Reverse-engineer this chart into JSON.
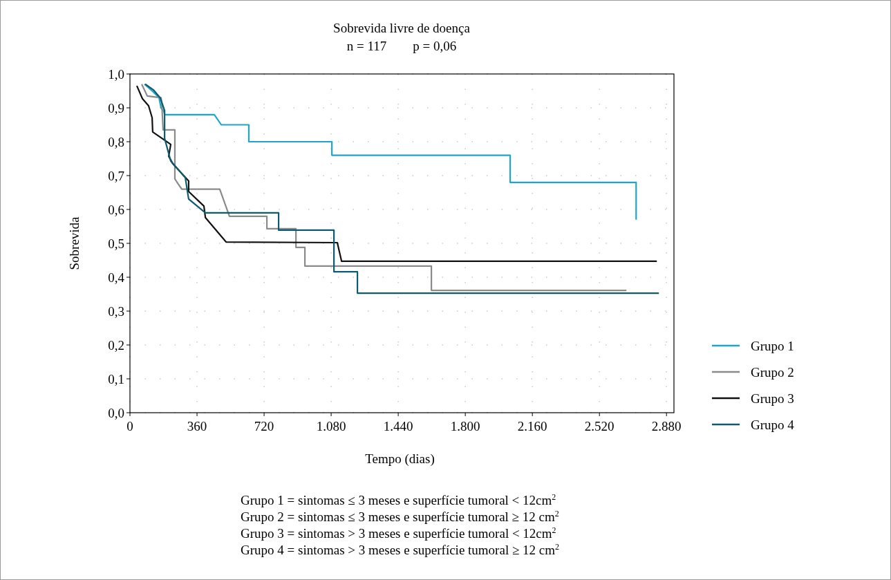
{
  "chart_data": {
    "type": "line",
    "title": "Sobrevida livre de doença",
    "subtitle": "n = 117        p = 0,06",
    "xlabel": "Tempo (dias)",
    "ylabel": "Sobrevida",
    "xlim": [
      0,
      2920
    ],
    "ylim": [
      0,
      1
    ],
    "xticks": [
      0,
      360,
      720,
      {
        "value": 1080,
        "label": "1.080"
      },
      {
        "value": 1440,
        "label": "1.440"
      },
      {
        "value": 1800,
        "label": "1.800"
      },
      {
        "value": 2160,
        "label": "2.160"
      },
      {
        "value": 2520,
        "label": "2.520"
      },
      {
        "value": 2880,
        "label": "2.880"
      }
    ],
    "yticks": [
      {
        "value": 0,
        "label": "0,0"
      },
      {
        "value": 0.1,
        "label": "0,1"
      },
      {
        "value": 0.2,
        "label": "0,2"
      },
      {
        "value": 0.3,
        "label": "0,3"
      },
      {
        "value": 0.4,
        "label": "0,4"
      },
      {
        "value": 0.5,
        "label": "0,5"
      },
      {
        "value": 0.6,
        "label": "0,6"
      },
      {
        "value": 0.7,
        "label": "0,7"
      },
      {
        "value": 0.8,
        "label": "0,8"
      },
      {
        "value": 0.9,
        "label": "0,9"
      },
      {
        "value": 1,
        "label": "1,0"
      }
    ],
    "grid": true,
    "legend": "right",
    "marker": "none",
    "line_style": "solid",
    "series": [
      {
        "name": "Grupo 1",
        "color": "#1ba6cc",
        "x": [
          78,
          119,
          156,
          167,
          182,
          186,
          453,
          490,
          638,
          638,
          1084,
          1084,
          2041,
          2041,
          2717,
          2717
        ],
        "values": [
          0.97,
          0.95,
          0.93,
          0.9,
          0.89,
          0.88,
          0.88,
          0.85,
          0.85,
          0.8,
          0.8,
          0.76,
          0.76,
          0.68,
          0.68,
          0.57
        ]
      },
      {
        "name": "Grupo 2",
        "color": "#8a8a8a",
        "x": [
          63,
          93,
          167,
          171,
          178,
          241,
          241,
          278,
          482,
          534,
          735,
          735,
          891,
          891,
          939,
          939,
          1618,
          1618,
          2665
        ],
        "values": [
          0.97,
          0.935,
          0.93,
          0.91,
          0.835,
          0.835,
          0.69,
          0.66,
          0.66,
          0.58,
          0.58,
          0.543,
          0.543,
          0.488,
          0.488,
          0.433,
          0.433,
          0.361,
          0.361
        ]
      },
      {
        "name": "Grupo 3",
        "color": "#111111",
        "x": [
          37,
          67,
          100,
          119,
          122,
          219,
          208,
          230,
          315,
          315,
          397,
          405,
          516,
          1113,
          1136,
          2828
        ],
        "values": [
          0.965,
          0.927,
          0.906,
          0.871,
          0.829,
          0.792,
          0.757,
          0.735,
          0.684,
          0.653,
          0.61,
          0.576,
          0.504,
          0.502,
          0.447,
          0.447
        ]
      },
      {
        "name": "Grupo 4",
        "color": "#0d5b6e",
        "x": [
          82,
          126,
          163,
          186,
          186,
          219,
          297,
          315,
          405,
          798,
          798,
          1095,
          1095,
          1221,
          1221,
          2839
        ],
        "values": [
          0.97,
          0.953,
          0.929,
          0.892,
          0.81,
          0.743,
          0.694,
          0.631,
          0.59,
          0.59,
          0.539,
          0.539,
          0.416,
          0.416,
          0.353,
          0.353
        ]
      }
    ],
    "annotations": [
      "Grupo 1 = sintomas ≤ 3 meses e superfície tumoral < 12cm$^{2}$",
      "Grupo 2 = sintomas ≤ 3 meses e superfície tumoral ≥ 12 cm$^{2}$",
      "Grupo 3 = sintomas > 3 meses e superfície tumoral < 12cm$^{2}$",
      "Grupo 4 = sintomas > 3 meses e superfície tumoral ≥ 12 cm$^{2}$"
    ]
  }
}
